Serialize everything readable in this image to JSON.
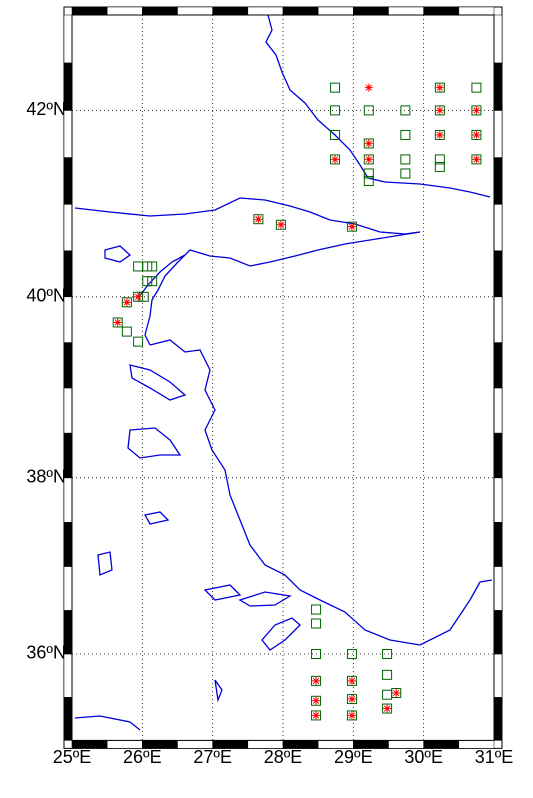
{
  "chart_data": {
    "type": "map",
    "projection": "mercator",
    "xlim": [
      25,
      31
    ],
    "ylim": [
      35,
      43
    ],
    "xticks": [
      {
        "value": 25,
        "label": "25ºE"
      },
      {
        "value": 26,
        "label": "26ºE"
      },
      {
        "value": 27,
        "label": "27ºE"
      },
      {
        "value": 28,
        "label": "28ºE"
      },
      {
        "value": 29,
        "label": "29ºE"
      },
      {
        "value": 30,
        "label": "30ºE"
      },
      {
        "value": 31,
        "label": "31ºE"
      }
    ],
    "yticks": [
      {
        "value": 36,
        "label": "36ºN"
      },
      {
        "value": 38,
        "label": "38ºN"
      },
      {
        "value": 40,
        "label": "40ºN"
      },
      {
        "value": 42,
        "label": "42ºN"
      }
    ],
    "grid": true,
    "coast_color": "#0000dd",
    "markers": [
      {
        "shape": "square",
        "color": "#006400",
        "lon": [
          28.74,
          30.23,
          30.75,
          28.74,
          29.22,
          29.74,
          30.23,
          30.75,
          28.74,
          29.74,
          30.23,
          30.75,
          29.22,
          28.74,
          29.22,
          29.74,
          30.23,
          30.75,
          30.23,
          29.22,
          29.74,
          29.22,
          27.65,
          27.97,
          28.98,
          25.94,
          26.07,
          26.14,
          26.07,
          26.14,
          25.94,
          26.02,
          25.78,
          25.65,
          25.78,
          25.94,
          28.47,
          28.47,
          28.47,
          28.98,
          29.48,
          29.48,
          28.47,
          28.98,
          29.48,
          29.61,
          28.47,
          28.98,
          29.48,
          28.47,
          28.98
        ],
        "lat": [
          42.24,
          42.24,
          42.24,
          42.0,
          42.0,
          42.0,
          42.0,
          42.0,
          41.74,
          41.74,
          41.74,
          41.74,
          41.65,
          41.48,
          41.48,
          41.48,
          41.48,
          41.48,
          41.4,
          41.33,
          41.33,
          41.25,
          40.84,
          40.78,
          40.76,
          40.33,
          40.33,
          40.33,
          40.17,
          40.17,
          40.0,
          40.0,
          39.94,
          39.72,
          39.62,
          39.51,
          36.51,
          36.35,
          36.0,
          36.0,
          36.0,
          35.76,
          35.69,
          35.69,
          35.53,
          35.55,
          35.46,
          35.48,
          35.37,
          35.29,
          35.29
        ]
      },
      {
        "shape": "star",
        "color": "#ff0000",
        "lon": [
          29.22,
          30.23,
          30.23,
          30.75,
          30.23,
          30.75,
          29.22,
          28.74,
          29.22,
          30.75,
          27.65,
          27.97,
          28.98,
          25.94,
          25.78,
          25.65,
          28.47,
          28.98,
          29.61,
          28.47,
          28.98,
          29.48,
          28.47,
          28.98
        ],
        "lat": [
          42.24,
          42.24,
          42.0,
          42.0,
          41.74,
          41.74,
          41.65,
          41.48,
          41.48,
          41.48,
          40.84,
          40.78,
          40.76,
          40.0,
          39.94,
          39.72,
          35.69,
          35.69,
          35.55,
          35.46,
          35.48,
          35.37,
          35.29,
          35.29
        ]
      }
    ]
  }
}
